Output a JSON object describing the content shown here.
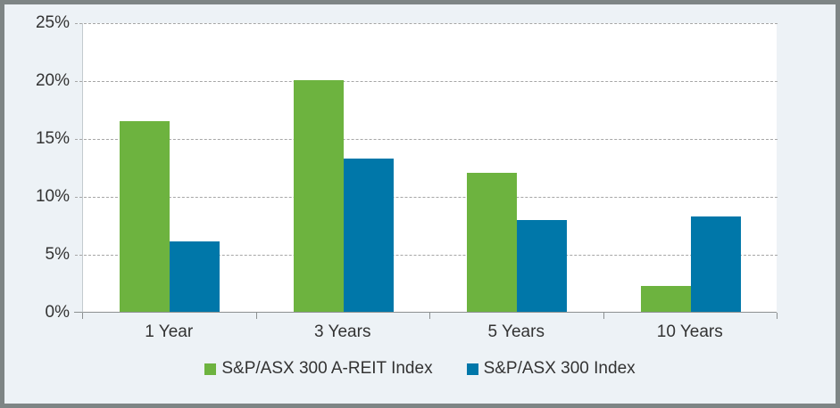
{
  "chart_data": {
    "type": "bar",
    "title": "",
    "xlabel": "",
    "ylabel": "",
    "categories": [
      "1 Year",
      "3 Years",
      "5 Years",
      "10 Years"
    ],
    "series": [
      {
        "name": "S&P/ASX 300 A-REIT Index",
        "color": "#6DB33F",
        "values": [
          16.5,
          20.0,
          12.0,
          2.2
        ]
      },
      {
        "name": "S&P/ASX 300 Index",
        "color": "#0077A9",
        "values": [
          6.1,
          13.2,
          7.9,
          8.2
        ]
      }
    ],
    "ylim": [
      0,
      25
    ],
    "ytick_step": 5,
    "ytick_labels_top_to_bottom": [
      "25%",
      "20%",
      "15%",
      "10%",
      "5%",
      "0%"
    ],
    "grid": "horizontal-dashed",
    "legend_position": "bottom-center"
  },
  "colors": {
    "series_green": "#6DB33F",
    "series_blue": "#0077A9",
    "background": "#EDF2F6",
    "plot_background": "#FFFFFF",
    "frame_border": "#7E8585",
    "gridline": "#A6A6A6",
    "axis_line": "#8C9091",
    "label_text": "#333333"
  }
}
